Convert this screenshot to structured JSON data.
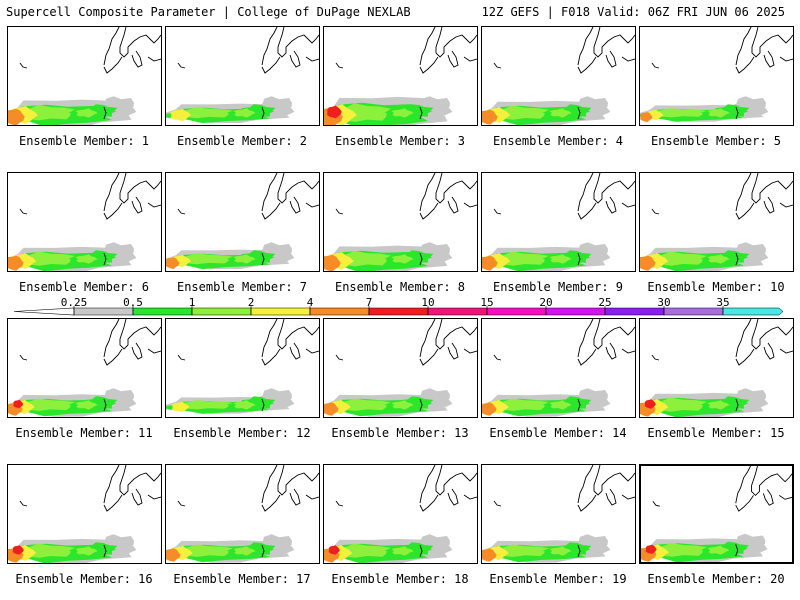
{
  "header": {
    "title": "Supercell Composite Parameter | College of DuPage NEXLAB",
    "run_info": "12Z GEFS | F018 Valid: 06Z FRI JUN 06 2025"
  },
  "members": [
    {
      "label": "Ensemble Member: 1",
      "max_level": 4,
      "west_intensity": 1.0
    },
    {
      "label": "Ensemble Member: 2",
      "max_level": 3,
      "west_intensity": 0.7
    },
    {
      "label": "Ensemble Member: 3",
      "max_level": 5,
      "west_intensity": 1.2
    },
    {
      "label": "Ensemble Member: 4",
      "max_level": 4,
      "west_intensity": 0.9
    },
    {
      "label": "Ensemble Member: 5",
      "max_level": 4,
      "west_intensity": 0.6
    },
    {
      "label": "Ensemble Member: 6",
      "max_level": 4,
      "west_intensity": 0.9
    },
    {
      "label": "Ensemble Member: 7",
      "max_level": 4,
      "west_intensity": 0.7
    },
    {
      "label": "Ensemble Member: 8",
      "max_level": 4,
      "west_intensity": 1.0
    },
    {
      "label": "Ensemble Member: 9",
      "max_level": 4,
      "west_intensity": 0.9
    },
    {
      "label": "Ensemble Member: 10",
      "max_level": 4,
      "west_intensity": 0.9
    },
    {
      "label": "Ensemble Member: 11",
      "max_level": 5,
      "west_intensity": 0.8
    },
    {
      "label": "Ensemble Member: 12",
      "max_level": 3,
      "west_intensity": 0.6
    },
    {
      "label": "Ensemble Member: 13",
      "max_level": 4,
      "west_intensity": 0.8
    },
    {
      "label": "Ensemble Member: 14",
      "max_level": 4,
      "west_intensity": 0.8
    },
    {
      "label": "Ensemble Member: 15",
      "max_level": 5,
      "west_intensity": 0.9
    },
    {
      "label": "Ensemble Member: 16",
      "max_level": 5,
      "west_intensity": 0.9
    },
    {
      "label": "Ensemble Member: 17",
      "max_level": 4,
      "west_intensity": 0.8
    },
    {
      "label": "Ensemble Member: 18",
      "max_level": 5,
      "west_intensity": 0.9
    },
    {
      "label": "Ensemble Member: 19",
      "max_level": 4,
      "west_intensity": 0.8
    },
    {
      "label": "Ensemble Member: 20",
      "max_level": 5,
      "west_intensity": 0.9,
      "highlighted": true
    }
  ],
  "legend": {
    "thresholds": [
      "0.25",
      "0.5",
      "1",
      "2",
      "4",
      "7",
      "10",
      "15",
      "20",
      "25",
      "30",
      "35"
    ],
    "colors": [
      "#c8c8c8",
      "#2be62b",
      "#8cf03c",
      "#f5f03c",
      "#f58c28",
      "#f01e1e",
      "#f01478",
      "#f50fbe",
      "#d214f0",
      "#8c1ef0",
      "#aa6edc",
      "#4be6e6"
    ],
    "base_color": "#ffffff"
  },
  "map_style": {
    "coastline_color": "#000000",
    "ocean_color": "#ffffff"
  }
}
